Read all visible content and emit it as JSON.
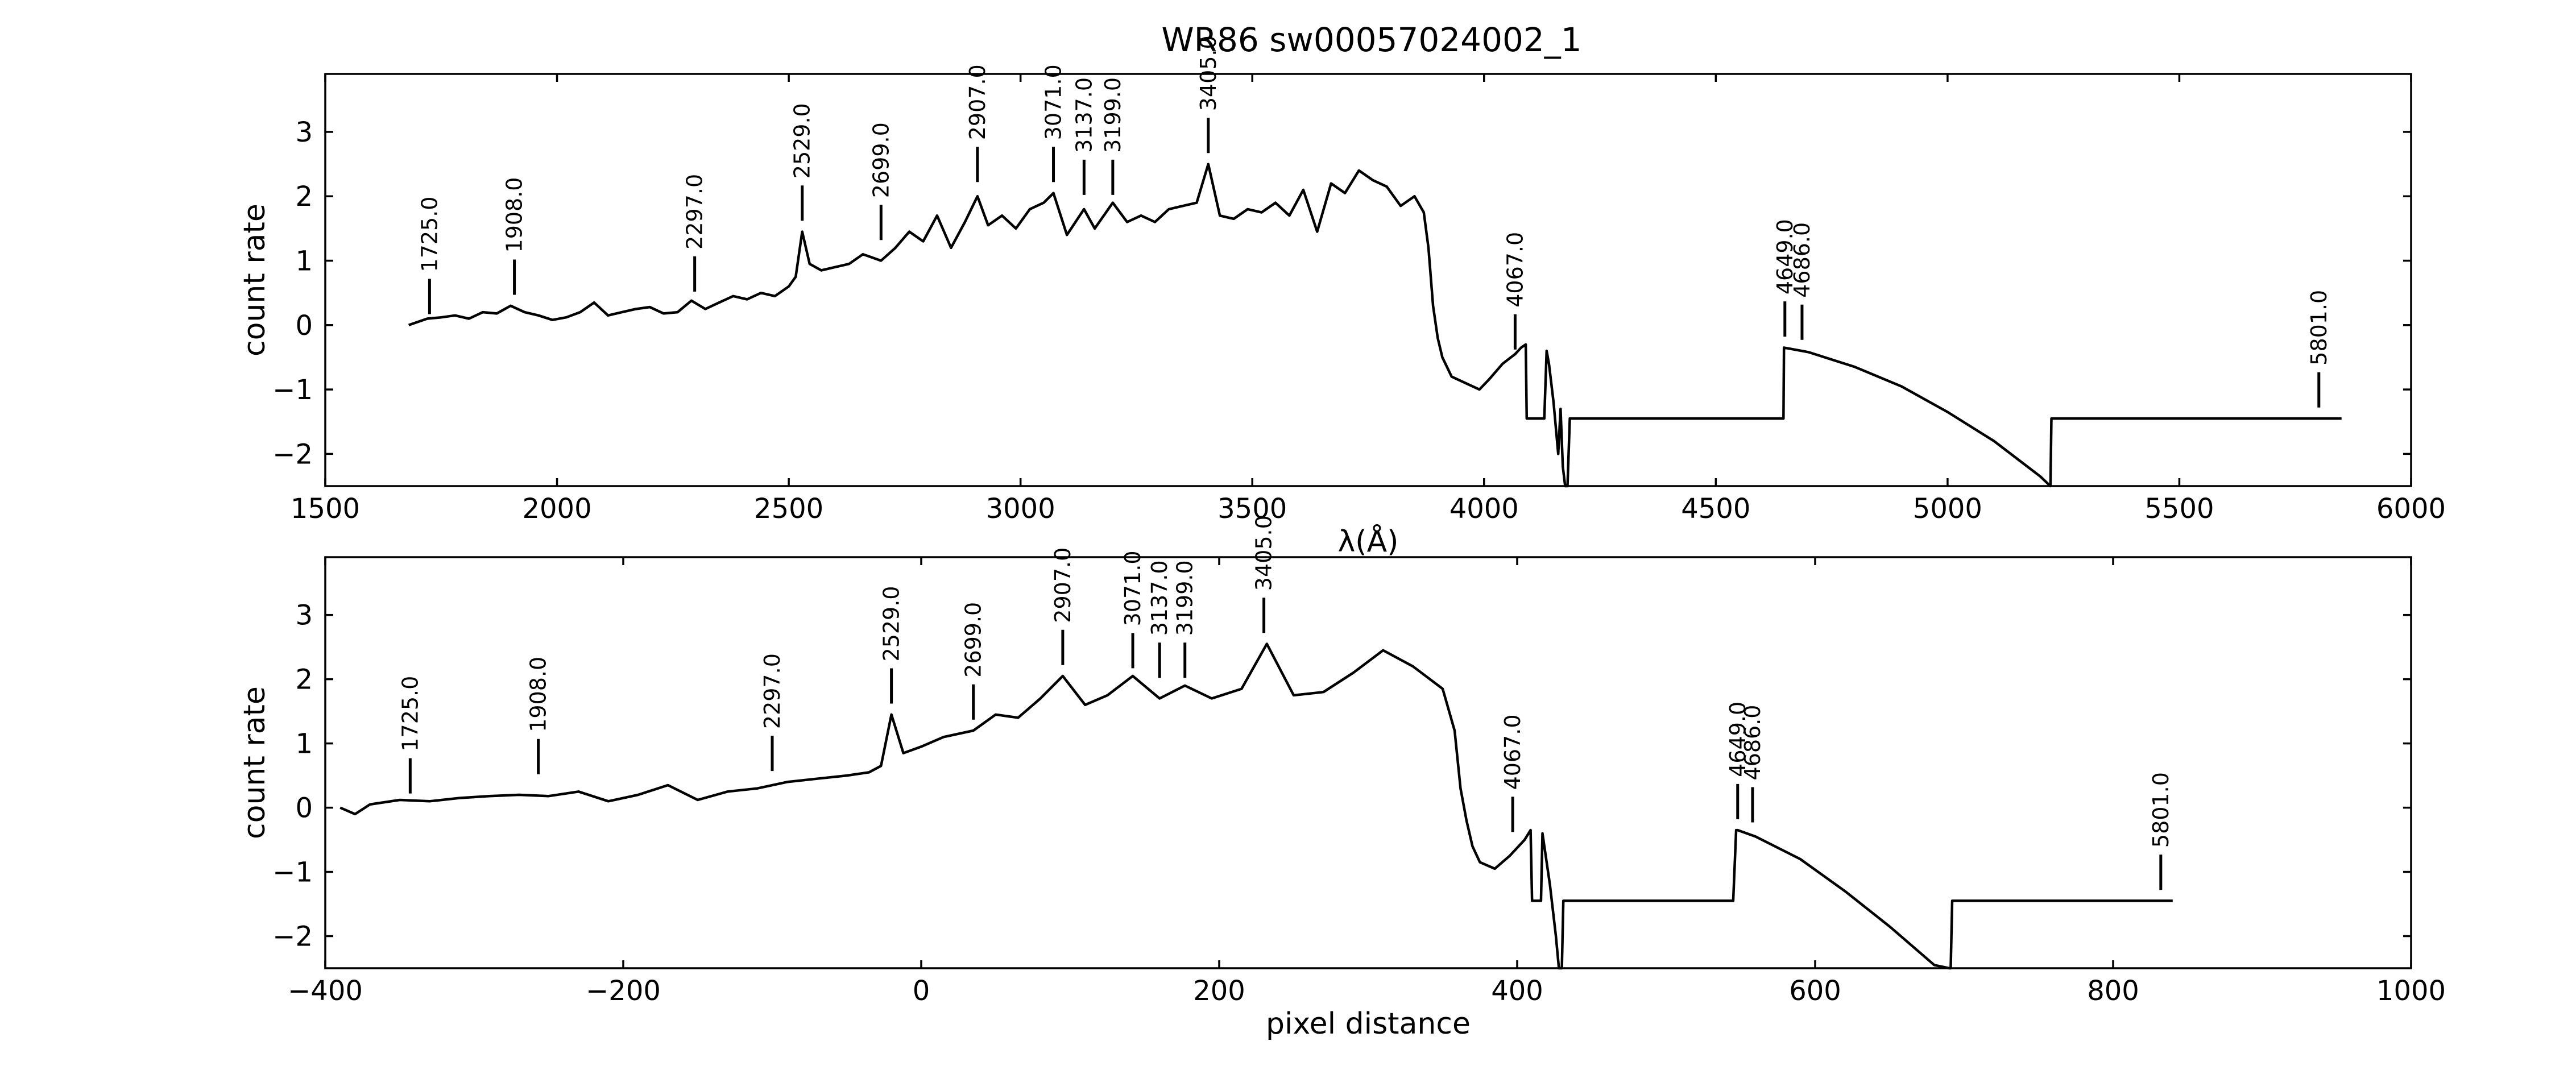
{
  "figure": {
    "title": "WR86  sw00057024002_1"
  },
  "chart_data": [
    {
      "type": "line",
      "name": "wavelength-panel",
      "xlabel": "λ(Å)",
      "ylabel": "count rate",
      "xlim": [
        1500,
        6000
      ],
      "ylim": [
        -2.5,
        3.9
      ],
      "xticks": [
        1500,
        2000,
        2500,
        3000,
        3500,
        4000,
        4500,
        5000,
        5500,
        6000
      ],
      "yticks": [
        -2,
        -1,
        0,
        1,
        2,
        3
      ],
      "grid": false,
      "series": [
        {
          "x": [
            1680,
            1700,
            1720,
            1750,
            1780,
            1810,
            1840,
            1870,
            1900,
            1930,
            1960,
            1990,
            2020,
            2050,
            2080,
            2110,
            2140,
            2170,
            2200,
            2230,
            2260,
            2290,
            2320,
            2350,
            2380,
            2410,
            2440,
            2470,
            2500,
            2515,
            2529,
            2545,
            2570,
            2600,
            2630,
            2660,
            2699,
            2730,
            2760,
            2790,
            2820,
            2850,
            2880,
            2907,
            2930,
            2960,
            2990,
            3020,
            3050,
            3071,
            3100,
            3137,
            3160,
            3199,
            3230,
            3260,
            3290,
            3320,
            3350,
            3380,
            3405,
            3430,
            3460,
            3490,
            3520,
            3550,
            3580,
            3610,
            3640,
            3670,
            3700,
            3730,
            3760,
            3790,
            3820,
            3850,
            3870,
            3880,
            3890,
            3900,
            3910,
            3930,
            3960,
            3990,
            4010,
            4040,
            4067,
            4080,
            4090,
            4092,
            4100,
            4130,
            4135,
            4140,
            4150,
            4160,
            4165,
            4170,
            4175,
            4180,
            4185,
            4190,
            4600,
            4646,
            4647,
            4700,
            4800,
            4900,
            5000,
            5100,
            5200,
            5222,
            5224,
            5500,
            5850
          ],
          "values": [
            0.0,
            0.05,
            0.1,
            0.12,
            0.15,
            0.1,
            0.2,
            0.18,
            0.3,
            0.2,
            0.15,
            0.08,
            0.12,
            0.2,
            0.35,
            0.15,
            0.2,
            0.25,
            0.28,
            0.18,
            0.2,
            0.38,
            0.25,
            0.35,
            0.45,
            0.4,
            0.5,
            0.45,
            0.6,
            0.75,
            1.45,
            0.95,
            0.85,
            0.9,
            0.95,
            1.1,
            1.0,
            1.2,
            1.45,
            1.3,
            1.7,
            1.2,
            1.6,
            2.0,
            1.55,
            1.7,
            1.5,
            1.8,
            1.9,
            2.05,
            1.4,
            1.8,
            1.5,
            1.9,
            1.6,
            1.7,
            1.6,
            1.8,
            1.85,
            1.9,
            2.5,
            1.7,
            1.65,
            1.8,
            1.75,
            1.9,
            1.7,
            2.1,
            1.45,
            2.2,
            2.05,
            2.4,
            2.25,
            2.15,
            1.85,
            2.0,
            1.75,
            1.2,
            0.3,
            -0.2,
            -0.5,
            -0.8,
            -0.9,
            -1.0,
            -0.85,
            -0.6,
            -0.45,
            -0.35,
            -0.3,
            -1.45,
            -1.45,
            -1.45,
            -0.4,
            -0.6,
            -1.2,
            -2.0,
            -1.3,
            -2.2,
            -2.55,
            -2.55,
            -1.45,
            -1.45,
            -1.45,
            -1.45,
            -0.35,
            -0.42,
            -0.65,
            -0.95,
            -1.35,
            -1.8,
            -2.35,
            -2.5,
            -1.45,
            -1.45,
            -1.45
          ]
        }
      ],
      "lines": [
        {
          "label": "1725.0",
          "x": 1725,
          "ybase": 0.1
        },
        {
          "label": "1908.0",
          "x": 1908,
          "ybase": 0.4
        },
        {
          "label": "2297.0",
          "x": 2297,
          "ybase": 0.45
        },
        {
          "label": "2529.0",
          "x": 2529,
          "ybase": 1.55
        },
        {
          "label": "2699.0",
          "x": 2699,
          "ybase": 1.25
        },
        {
          "label": "2907.0",
          "x": 2907,
          "ybase": 2.15
        },
        {
          "label": "3071.0",
          "x": 3071,
          "ybase": 2.15
        },
        {
          "label": "3137.0",
          "x": 3137,
          "ybase": 1.95
        },
        {
          "label": "3199.0",
          "x": 3199,
          "ybase": 1.95
        },
        {
          "label": "3405.0",
          "x": 3405,
          "ybase": 2.6
        },
        {
          "label": "4067.0",
          "x": 4067,
          "ybase": -0.45
        },
        {
          "label": "4649.0",
          "x": 4649,
          "ybase": -0.25
        },
        {
          "label": "4686.0",
          "x": 4686,
          "ybase": -0.3
        },
        {
          "label": "5801.0",
          "x": 5801,
          "ybase": -1.35
        }
      ]
    },
    {
      "type": "line",
      "name": "pixel-panel",
      "xlabel": "pixel distance",
      "ylabel": "count rate",
      "xlim": [
        -400,
        1000
      ],
      "ylim": [
        -2.5,
        3.9
      ],
      "xticks": [
        -400,
        -200,
        0,
        200,
        400,
        600,
        800,
        1000
      ],
      "yticks": [
        -2,
        -1,
        0,
        1,
        2,
        3
      ],
      "grid": false,
      "series": [
        {
          "x": [
            -390,
            -380,
            -370,
            -350,
            -330,
            -310,
            -290,
            -270,
            -250,
            -230,
            -210,
            -190,
            -170,
            -150,
            -130,
            -110,
            -90,
            -70,
            -50,
            -35,
            -27,
            -20,
            -12,
            0,
            15,
            35,
            50,
            65,
            80,
            95,
            110,
            125,
            142,
            160,
            177,
            195,
            215,
            232,
            250,
            270,
            290,
            310,
            330,
            350,
            358,
            362,
            366,
            370,
            375,
            385,
            395,
            405,
            409,
            410,
            416,
            417,
            422,
            426,
            428,
            430,
            431,
            432,
            545,
            547,
            548,
            560,
            590,
            620,
            650,
            680,
            690,
            691,
            692,
            840
          ],
          "values": [
            0.0,
            -0.1,
            0.05,
            0.12,
            0.1,
            0.15,
            0.18,
            0.2,
            0.18,
            0.25,
            0.1,
            0.2,
            0.35,
            0.12,
            0.25,
            0.3,
            0.4,
            0.45,
            0.5,
            0.55,
            0.65,
            1.45,
            0.85,
            0.95,
            1.1,
            1.2,
            1.45,
            1.4,
            1.7,
            2.05,
            1.6,
            1.75,
            2.05,
            1.7,
            1.9,
            1.7,
            1.85,
            2.55,
            1.75,
            1.8,
            2.1,
            2.45,
            2.2,
            1.85,
            1.2,
            0.3,
            -0.2,
            -0.6,
            -0.85,
            -0.95,
            -0.75,
            -0.5,
            -0.35,
            -1.45,
            -1.45,
            -0.4,
            -1.2,
            -2.0,
            -2.55,
            -2.55,
            -1.45,
            -1.45,
            -1.45,
            -0.35,
            -0.35,
            -0.45,
            -0.8,
            -1.3,
            -1.85,
            -2.45,
            -2.55,
            -2.55,
            -1.45,
            -1.45
          ]
        }
      ],
      "lines": [
        {
          "label": "1725.0",
          "x": -343,
          "ybase": 0.15
        },
        {
          "label": "1908.0",
          "x": -257,
          "ybase": 0.45
        },
        {
          "label": "2297.0",
          "x": -100,
          "ybase": 0.5
        },
        {
          "label": "2529.0",
          "x": -20,
          "ybase": 1.55
        },
        {
          "label": "2699.0",
          "x": 35,
          "ybase": 1.3
        },
        {
          "label": "2907.0",
          "x": 95,
          "ybase": 2.15
        },
        {
          "label": "3071.0",
          "x": 142,
          "ybase": 2.1
        },
        {
          "label": "3137.0",
          "x": 160,
          "ybase": 1.95
        },
        {
          "label": "3199.0",
          "x": 177,
          "ybase": 1.95
        },
        {
          "label": "3405.0",
          "x": 230,
          "ybase": 2.65
        },
        {
          "label": "4067.0",
          "x": 397,
          "ybase": -0.45
        },
        {
          "label": "4649.0",
          "x": 548,
          "ybase": -0.25
        },
        {
          "label": "4686.0",
          "x": 558,
          "ybase": -0.3
        },
        {
          "label": "5801.0",
          "x": 832,
          "ybase": -1.35
        }
      ]
    }
  ]
}
